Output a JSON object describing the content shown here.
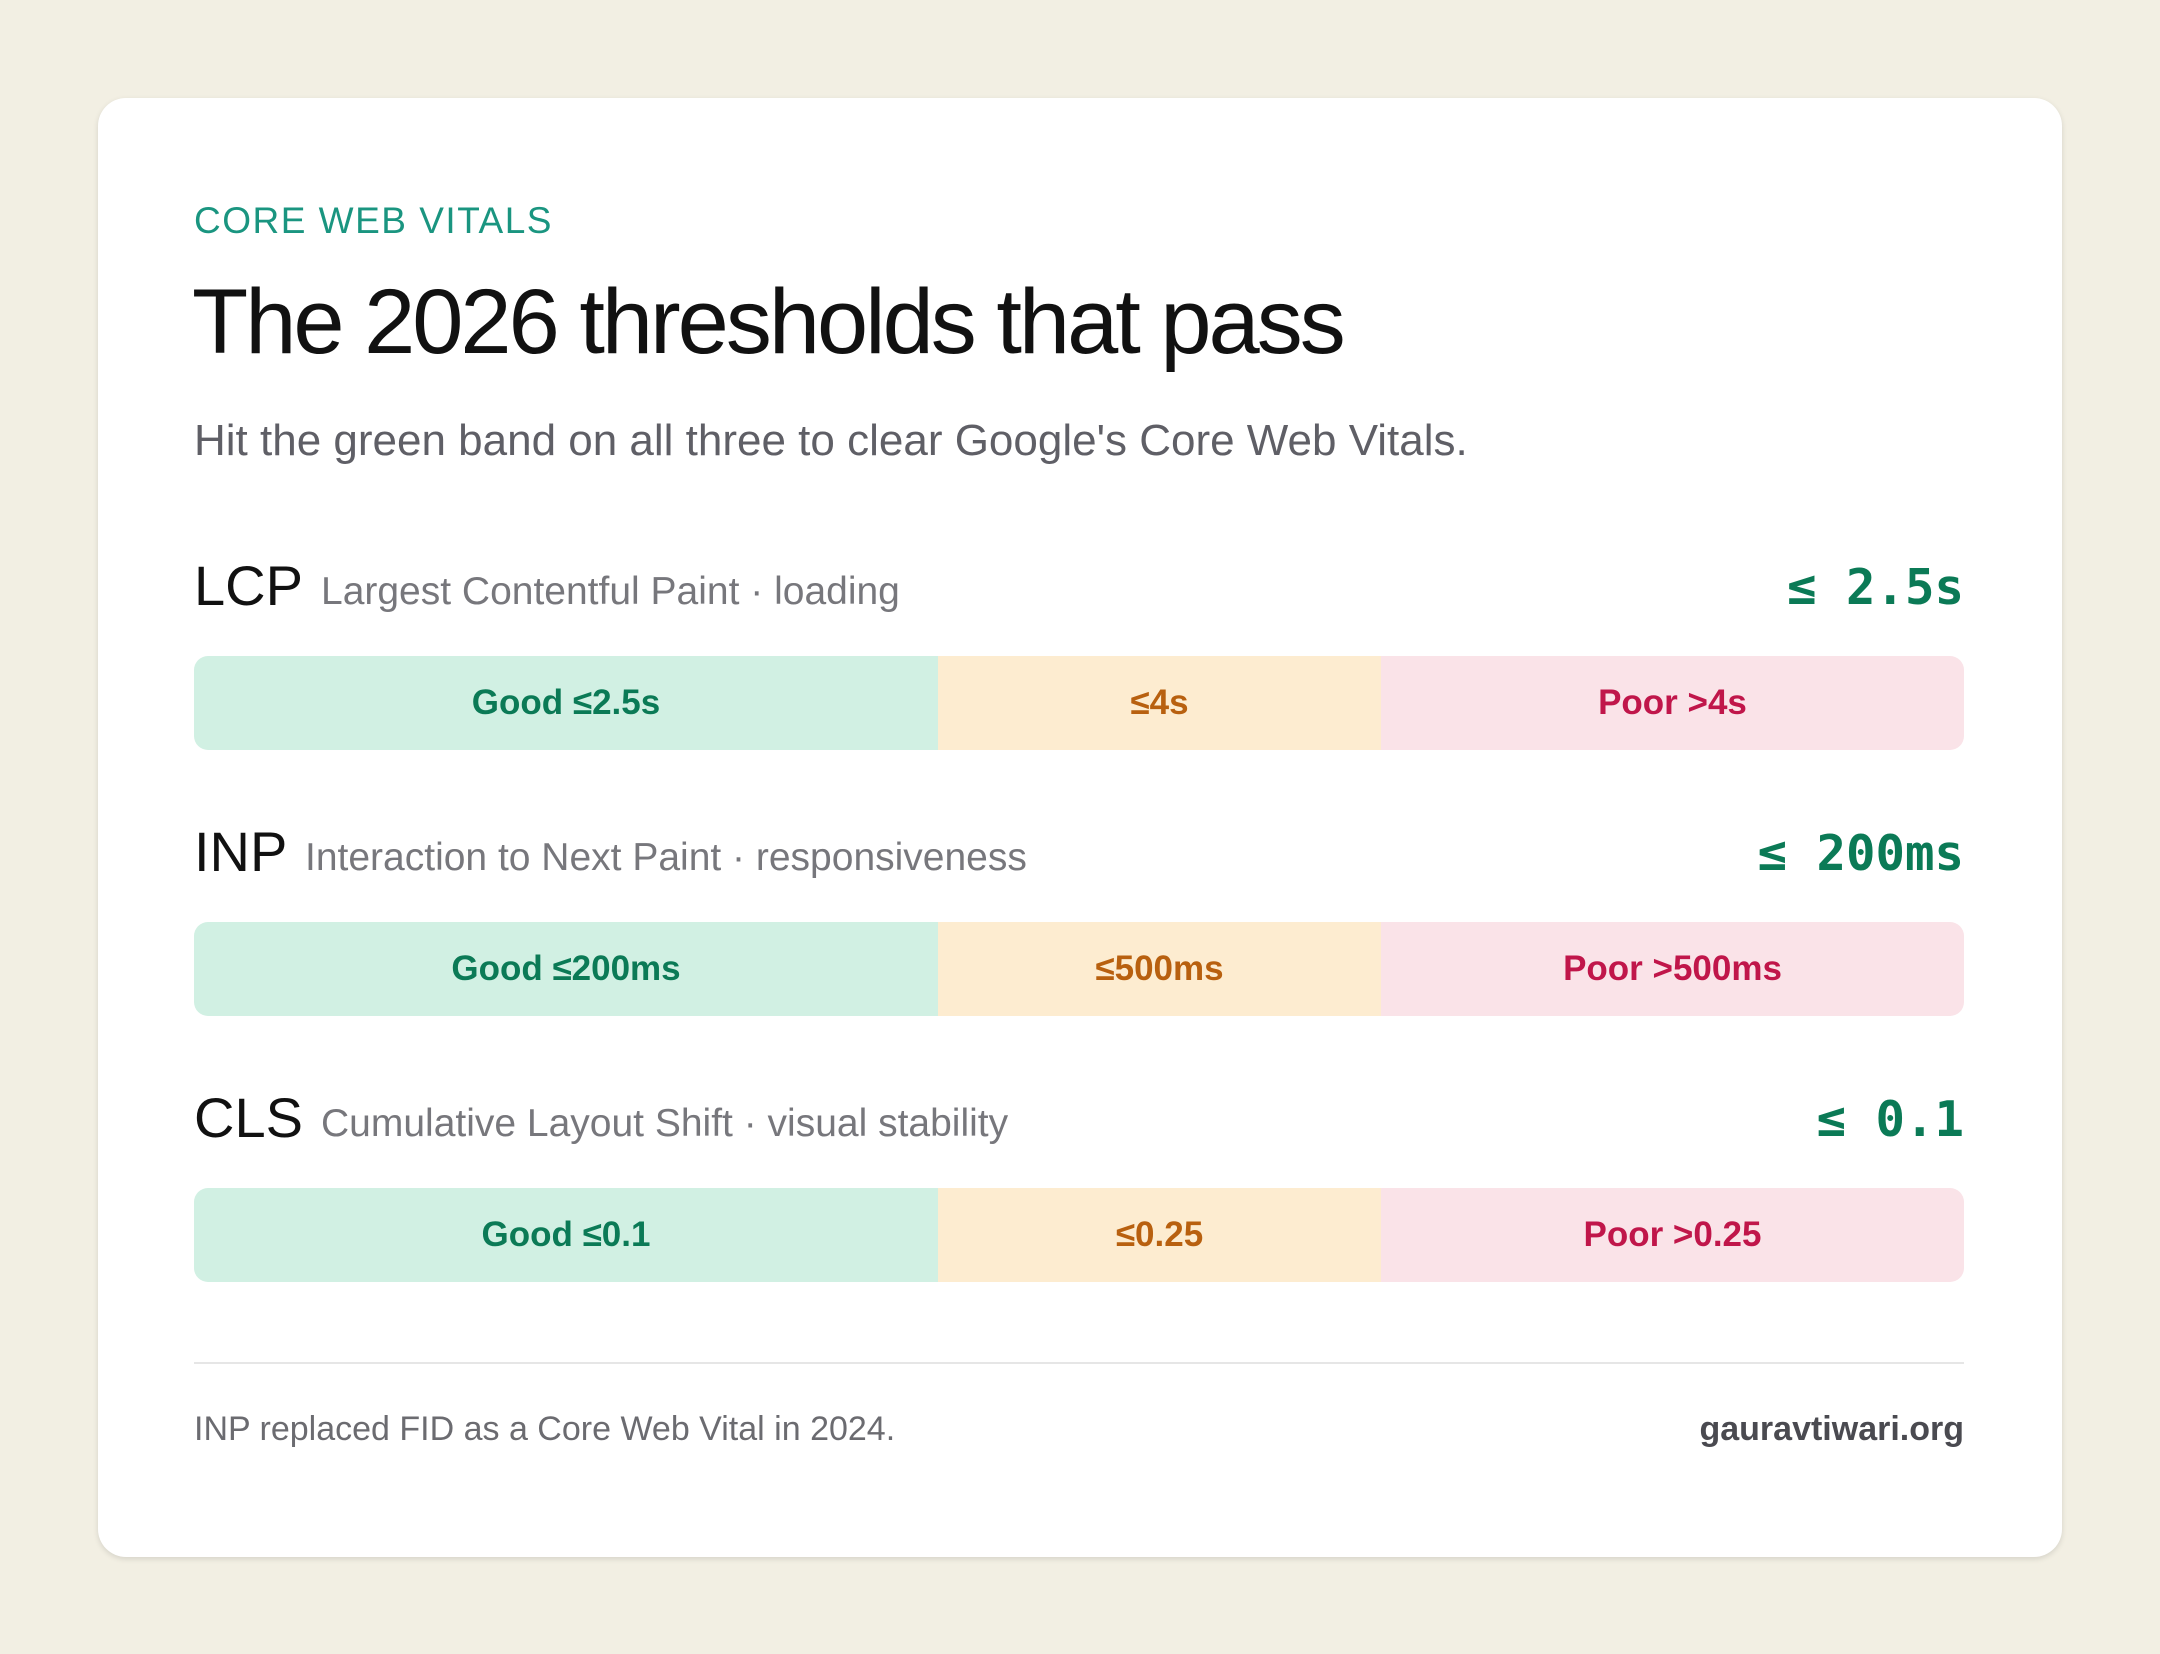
{
  "eyebrow": "CORE WEB VITALS",
  "title": "The 2026 thresholds that pass",
  "subtitle": "Hit the green band on all three to clear Google's Core Web Vitals.",
  "metrics": [
    {
      "abbr": "LCP",
      "name": "Largest Contentful Paint · loading",
      "target": "≤ 2.5s",
      "good": "Good ≤2.5s",
      "mid": "≤4s",
      "poor": "Poor >4s"
    },
    {
      "abbr": "INP",
      "name": "Interaction to Next Paint · responsiveness",
      "target": "≤ 200ms",
      "good": "Good ≤200ms",
      "mid": "≤500ms",
      "poor": "Poor >500ms"
    },
    {
      "abbr": "CLS",
      "name": "Cumulative Layout Shift · visual stability",
      "target": "≤ 0.1",
      "good": "Good ≤0.1",
      "mid": "≤0.25",
      "poor": "Poor >0.25"
    }
  ],
  "footer": {
    "note": "INP replaced FID as a Core Web Vital in 2024.",
    "site": "gauravtiwari.org"
  }
}
